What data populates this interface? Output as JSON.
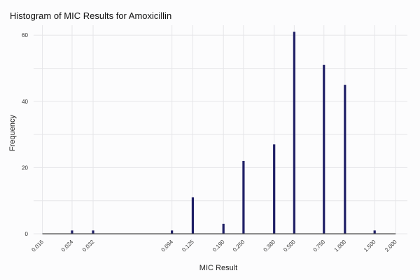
{
  "chart_data": {
    "type": "bar",
    "title": "Histogram of MIC Results for Amoxicillin",
    "xlabel": "MIC Result",
    "ylabel": "Frequency",
    "x_scale": "log",
    "x_ticks": [
      "0.016",
      "0.024",
      "0.032",
      "0.094",
      "0.125",
      "0.190",
      "0.250",
      "0.380",
      "0.500",
      "0.750",
      "1.000",
      "1.500",
      "2.000"
    ],
    "y_ticks": [
      0,
      20,
      40,
      60
    ],
    "ylim": [
      0,
      63
    ],
    "grid": true,
    "bar_color": "#1f1f66",
    "categories": [
      "0.016",
      "0.024",
      "0.032",
      "0.094",
      "0.125",
      "0.190",
      "0.250",
      "0.380",
      "0.500",
      "0.750",
      "1.000",
      "1.500",
      "2.000"
    ],
    "values": [
      0,
      1,
      1,
      1,
      11,
      3,
      22,
      27,
      61,
      51,
      45,
      1,
      0
    ]
  }
}
